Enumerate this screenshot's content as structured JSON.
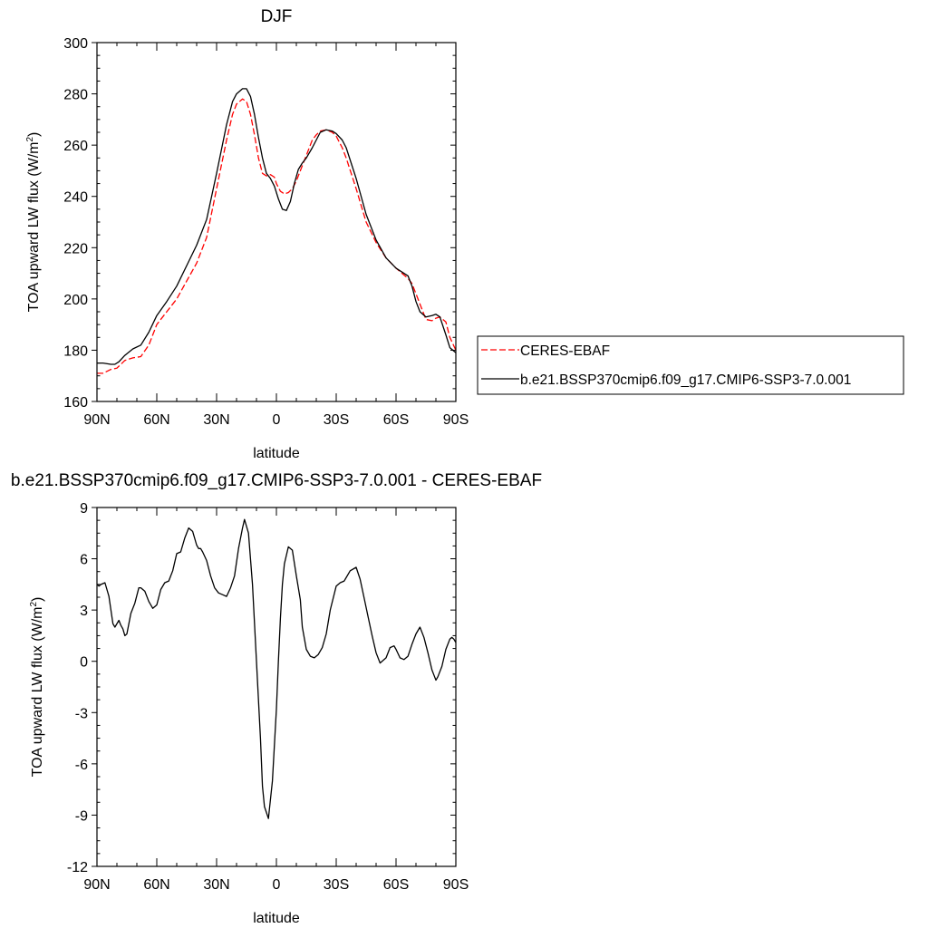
{
  "chart_data": [
    {
      "type": "line",
      "title": "DJF",
      "xlabel": "latitude",
      "ylabel": "TOA upward LW flux (W/m",
      "ylabel_sup": "2",
      "ylabel_tail": ")",
      "xlim": [
        90,
        -90
      ],
      "ylim": [
        160,
        300
      ],
      "x_ticks": [
        90,
        60,
        30,
        0,
        -30,
        -60,
        -90
      ],
      "x_tick_labels": [
        "90N",
        "60N",
        "30N",
        "0",
        "30S",
        "60S",
        "90S"
      ],
      "y_ticks": [
        160,
        180,
        200,
        220,
        240,
        260,
        280,
        300
      ],
      "y_tick_labels": [
        "160",
        "180",
        "200",
        "220",
        "240",
        "260",
        "280",
        "300"
      ],
      "legend_position": "right",
      "series": [
        {
          "name": "CERES-EBAF",
          "color": "#ff0000",
          "dash": "dashed",
          "x": [
            90,
            87,
            83,
            80,
            76,
            72,
            68,
            64,
            60,
            55,
            50,
            45,
            40,
            35,
            30,
            25,
            22,
            20,
            17,
            15,
            13,
            11,
            9,
            7,
            5,
            3,
            1,
            0,
            -2,
            -4,
            -6,
            -8,
            -10,
            -12,
            -15,
            -18,
            -20,
            -22,
            -25,
            -28,
            -30,
            -33,
            -35,
            -40,
            -45,
            -50,
            -55,
            -60,
            -63,
            -66,
            -68,
            -70,
            -72,
            -75,
            -78,
            -80,
            -82,
            -85,
            -87,
            -90
          ],
          "y": [
            171,
            171,
            172.5,
            173,
            176,
            177,
            177.5,
            182,
            190,
            195,
            200,
            207,
            214,
            224,
            243,
            262,
            272,
            276,
            278,
            277,
            272,
            264,
            255,
            249,
            248,
            248.5,
            247.5,
            245,
            242,
            241,
            241.5,
            243,
            246,
            250,
            256,
            262,
            264,
            265.5,
            266,
            265,
            263.5,
            259,
            255,
            243,
            230,
            222,
            216,
            212,
            210,
            208,
            206,
            202,
            198,
            192,
            191.5,
            192.5,
            193,
            191,
            185,
            180
          ]
        },
        {
          "name": "b.e21.BSSP370cmip6.f09_g17.CMIP6-SSP3-7.0.001",
          "color": "#000000",
          "dash": "solid",
          "x": [
            90,
            87,
            83,
            81,
            79,
            76,
            72,
            68,
            64,
            60,
            55,
            50,
            45,
            40,
            35,
            30,
            25,
            22,
            20,
            17,
            15,
            13,
            11,
            9,
            7,
            5,
            3,
            1,
            -1,
            -3,
            -5,
            -7,
            -9,
            -11,
            -13,
            -15,
            -18,
            -20,
            -22,
            -25,
            -28,
            -30,
            -33,
            -35,
            -40,
            -45,
            -50,
            -55,
            -60,
            -63,
            -66,
            -68,
            -70,
            -72,
            -75,
            -78,
            -80,
            -82,
            -85,
            -87,
            -90
          ],
          "y": [
            175,
            175,
            174.5,
            174.5,
            175.5,
            178,
            180.5,
            182,
            187,
            193.5,
            199,
            205,
            213,
            221,
            231,
            249,
            268,
            277,
            280,
            282,
            282,
            279,
            272,
            263,
            255,
            249,
            247,
            244,
            239,
            235,
            234.5,
            238,
            245,
            250.5,
            253,
            255,
            259,
            262,
            265,
            266,
            265.5,
            264.5,
            262,
            259,
            247,
            233,
            223,
            216,
            212,
            210.5,
            209,
            205,
            199,
            195,
            193,
            193.5,
            194,
            193,
            186,
            181,
            179
          ]
        }
      ]
    },
    {
      "type": "line",
      "title": "b.e21.BSSP370cmip6.f09_g17.CMIP6-SSP3-7.0.001 - CERES-EBAF",
      "xlabel": "latitude",
      "ylabel": "TOA upward LW flux (W/m",
      "ylabel_sup": "2",
      "ylabel_tail": ")",
      "xlim": [
        90,
        -90
      ],
      "ylim": [
        -12,
        9
      ],
      "x_ticks": [
        90,
        60,
        30,
        0,
        -30,
        -60,
        -90
      ],
      "x_tick_labels": [
        "90N",
        "60N",
        "30N",
        "0",
        "30S",
        "60S",
        "90S"
      ],
      "y_ticks": [
        -12,
        -9,
        -6,
        -3,
        0,
        3,
        6,
        9
      ],
      "y_tick_labels": [
        "-12",
        "-9",
        "-6",
        "-3",
        "0",
        "3",
        "6",
        "9"
      ],
      "series": [
        {
          "color": "#000000",
          "dash": "solid",
          "x": [
            90,
            89,
            88,
            86,
            84,
            82,
            81,
            79,
            78,
            77,
            76,
            75,
            73,
            71,
            69,
            68,
            66,
            64,
            62,
            60,
            58,
            56,
            54,
            52,
            50,
            48,
            46,
            44,
            42,
            40,
            39,
            38,
            37,
            35,
            33,
            31,
            29,
            27,
            25,
            23,
            21,
            19,
            17,
            16,
            14,
            12,
            10,
            8,
            7,
            6,
            4,
            2,
            0,
            -1,
            -2,
            -3,
            -4,
            -6,
            -8,
            -10,
            -12,
            -13,
            -15,
            -17,
            -19,
            -21,
            -23,
            -25,
            -27,
            -30,
            -32,
            -34,
            -37,
            -40,
            -42,
            -44,
            -46,
            -48,
            -50,
            -52,
            -55,
            -57,
            -59,
            -60,
            -62,
            -64,
            -66,
            -68,
            -70,
            -72,
            -74,
            -76,
            -78,
            -79,
            -80,
            -81,
            -83,
            -85,
            -87,
            -88,
            -89,
            -90
          ],
          "y": [
            4.5,
            4.4,
            4.5,
            4.6,
            3.8,
            2.2,
            2.0,
            2.4,
            2.1,
            1.9,
            1.5,
            1.6,
            2.8,
            3.4,
            4.3,
            4.3,
            4.1,
            3.5,
            3.1,
            3.3,
            4.2,
            4.6,
            4.7,
            5.3,
            6.3,
            6.4,
            7.2,
            7.8,
            7.6,
            6.8,
            6.6,
            6.6,
            6.4,
            5.9,
            5.0,
            4.3,
            4.0,
            3.9,
            3.8,
            4.3,
            5.0,
            6.6,
            7.8,
            8.3,
            7.5,
            4.5,
            0.0,
            -4.5,
            -7.3,
            -8.5,
            -9.2,
            -7.0,
            -2.8,
            0.0,
            2.5,
            4.5,
            5.7,
            6.7,
            6.5,
            5.0,
            3.6,
            2.0,
            0.7,
            0.3,
            0.2,
            0.4,
            0.8,
            1.6,
            3.0,
            4.4,
            4.6,
            4.7,
            5.3,
            5.5,
            4.8,
            3.7,
            2.6,
            1.5,
            0.5,
            -0.1,
            0.2,
            0.8,
            0.9,
            0.7,
            0.2,
            0.1,
            0.3,
            1.0,
            1.6,
            2.0,
            1.4,
            0.5,
            -0.5,
            -0.8,
            -1.1,
            -0.9,
            -0.3,
            0.7,
            1.3,
            1.4,
            1.3,
            1.1
          ]
        }
      ]
    }
  ]
}
